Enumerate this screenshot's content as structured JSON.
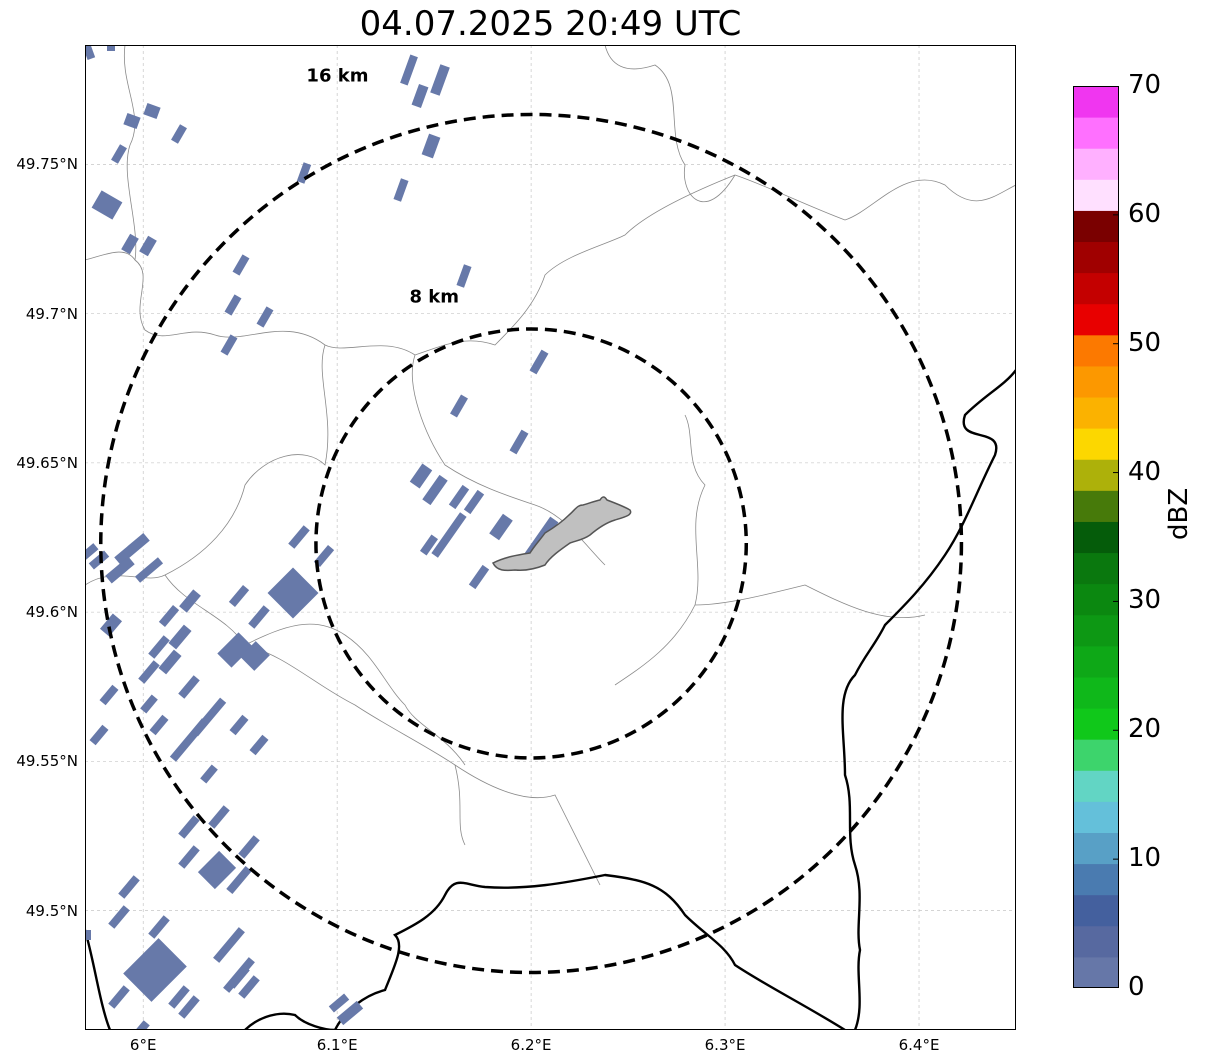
{
  "title": "04.07.2025 20:49 UTC",
  "rings": [
    {
      "label": "8 km",
      "radius_km": 8
    },
    {
      "label": "16 km",
      "radius_km": 16
    }
  ],
  "center": {
    "lon": 6.2,
    "lat": 49.623
  },
  "lat_ticks": [
    {
      "value": 49.75,
      "label": "49.75°N"
    },
    {
      "value": 49.7,
      "label": "49.7°N"
    },
    {
      "value": 49.65,
      "label": "49.65°N"
    },
    {
      "value": 49.6,
      "label": "49.6°N"
    },
    {
      "value": 49.55,
      "label": "49.55°N"
    },
    {
      "value": 49.5,
      "label": "49.5°N"
    }
  ],
  "lon_ticks": [
    {
      "value": 6.0,
      "label": "6°E"
    },
    {
      "value": 6.1,
      "label": "6.1°E"
    },
    {
      "value": 6.2,
      "label": "6.2°E"
    },
    {
      "value": 6.3,
      "label": "6.3°E"
    },
    {
      "value": 6.4,
      "label": "6.4°E"
    }
  ],
  "extent": {
    "lon_min": 5.97,
    "lon_max": 6.45,
    "lat_min": 49.46,
    "lat_max": 49.79
  },
  "colorbar": {
    "label": "dBZ",
    "ticks": [
      "0",
      "10",
      "20",
      "30",
      "40",
      "50",
      "60",
      "70"
    ],
    "colors": [
      "#6677a8",
      "#5769a0",
      "#44609e",
      "#4a7bb0",
      "#58a0c6",
      "#64c0da",
      "#62d5c4",
      "#3dd46c",
      "#10c81a",
      "#0fb81a",
      "#0ea817",
      "#0d9814",
      "#0b8810",
      "#0a780e",
      "#055c0a",
      "#477a0a",
      "#adb10a",
      "#fcd700",
      "#fbb200",
      "#fc9800",
      "#fc7900",
      "#e80000",
      "#c40000",
      "#a00000",
      "#7a0000",
      "#ffe0ff",
      "#ffb0ff",
      "#ff70ff",
      "#f036f0"
    ]
  },
  "echo_color": "#6779a9"
}
